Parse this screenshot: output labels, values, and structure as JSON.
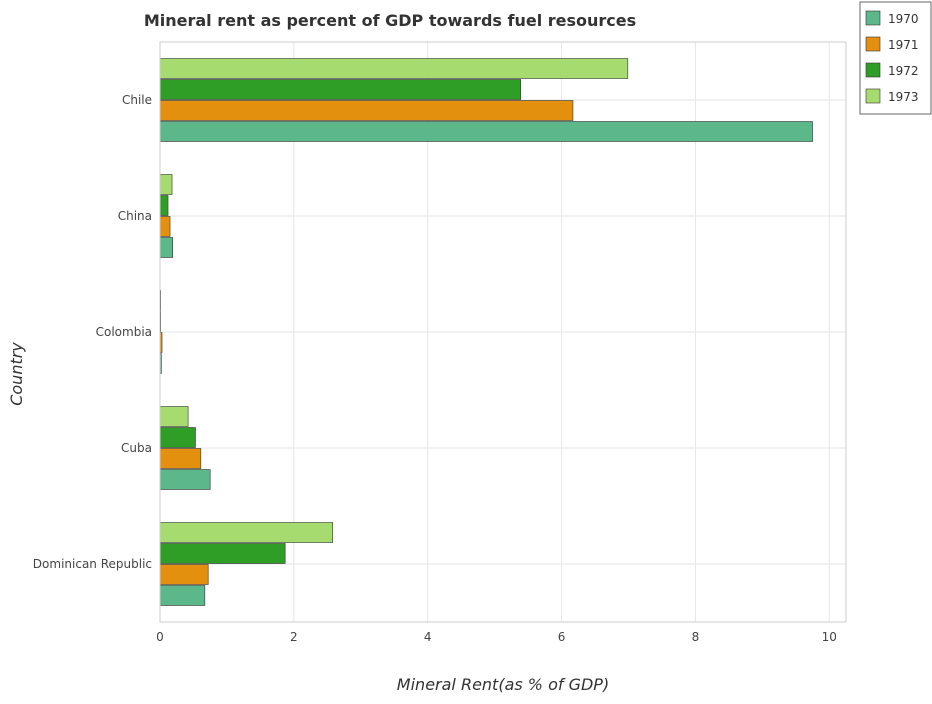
{
  "chart_data": {
    "type": "bar",
    "orientation": "horizontal",
    "title": "Mineral rent as percent of GDP towards fuel resources",
    "xlabel": "Mineral Rent(as % of GDP)",
    "ylabel": "Country",
    "xlim": [
      0,
      10.25
    ],
    "xticks": [
      0,
      2,
      4,
      6,
      8,
      10
    ],
    "grid": true,
    "legend_position": "top-right",
    "categories": [
      "Chile",
      "China",
      "Colombia",
      "Cuba",
      "Dominican Republic"
    ],
    "series": [
      {
        "name": "1970",
        "color": "#5cb88a",
        "values": [
          9.75,
          0.19,
          0.02,
          0.75,
          0.67
        ]
      },
      {
        "name": "1971",
        "color": "#e3900f",
        "values": [
          6.17,
          0.15,
          0.03,
          0.61,
          0.72
        ]
      },
      {
        "name": "1972",
        "color": "#2f9e27",
        "values": [
          5.39,
          0.12,
          0.01,
          0.53,
          1.87
        ]
      },
      {
        "name": "1973",
        "color": "#a6db6f",
        "values": [
          6.99,
          0.18,
          0.01,
          0.42,
          2.58
        ]
      }
    ]
  }
}
